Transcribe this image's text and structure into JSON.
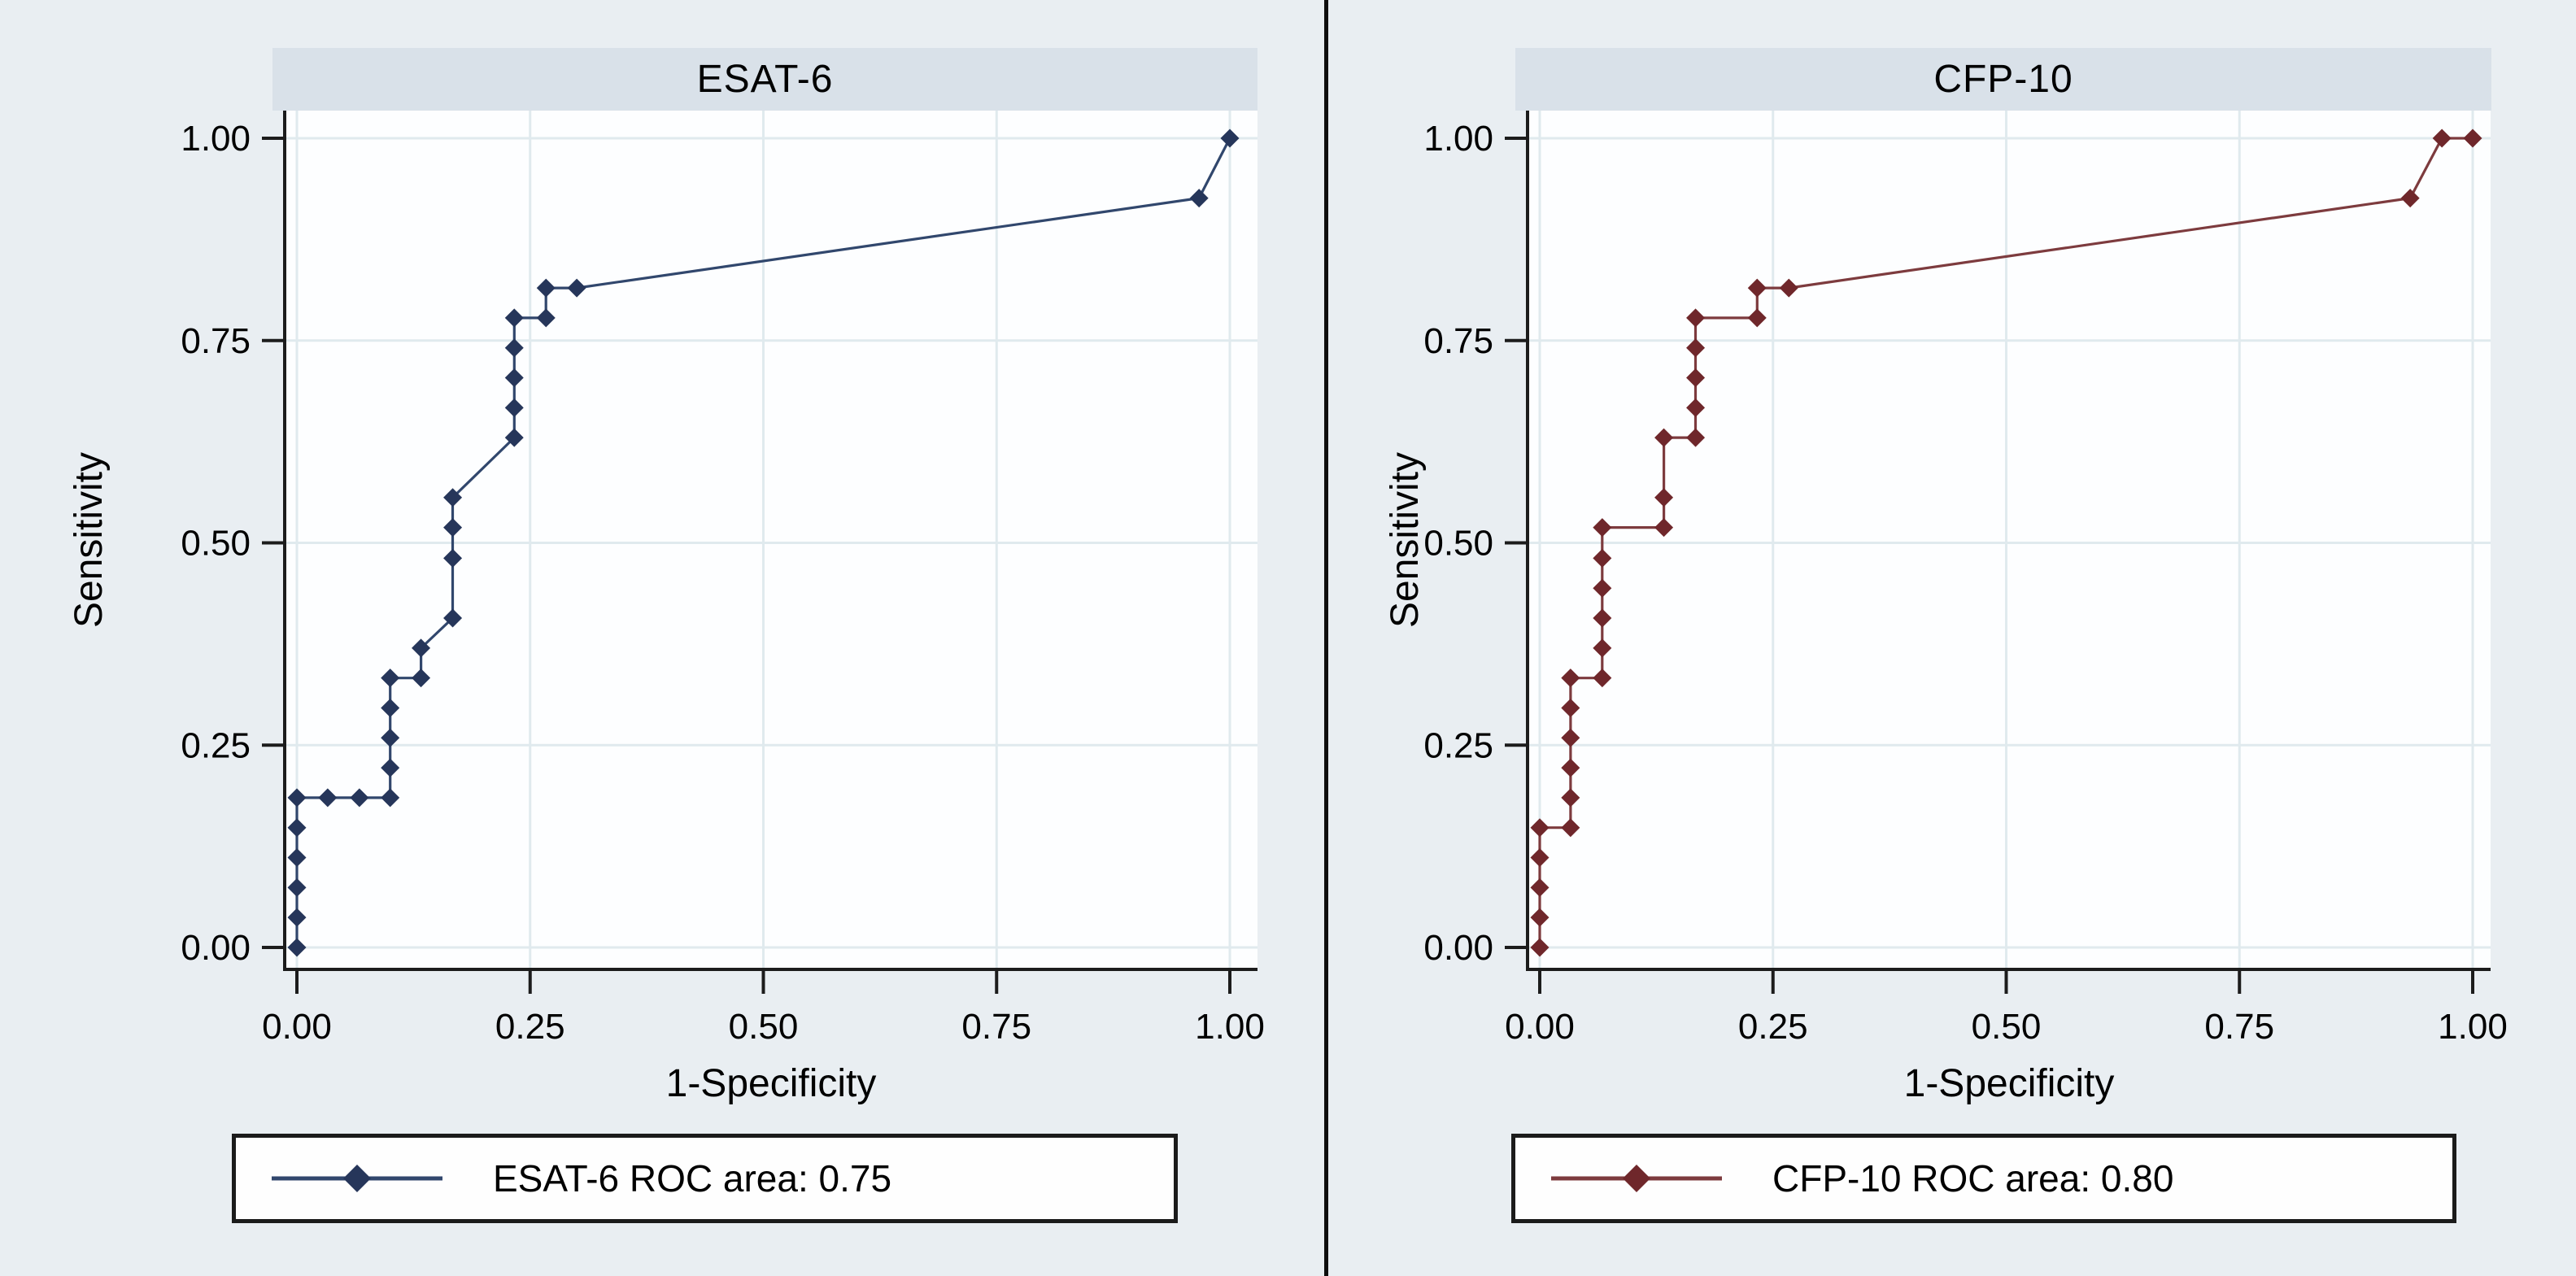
{
  "page": {
    "background": "#e9eef2",
    "divider_color": "#0e0e0e",
    "title_bar_color": "#d9e1e9",
    "plot_bg_color": "#fdfeff",
    "grid_color": "#e0eaee",
    "axis_color": "#1c1c1c"
  },
  "chart_data": [
    {
      "type": "line",
      "title": "ESAT-6",
      "xlabel": "1-Specificity",
      "ylabel": "Sensitivity",
      "xlim": [
        0,
        1
      ],
      "ylim": [
        0,
        1
      ],
      "grid": true,
      "x_tick_values": [
        0,
        0.25,
        0.5,
        0.75,
        1
      ],
      "x_tick_labels": [
        "0.00",
        "0.25",
        "0.50",
        "0.75",
        "1.00"
      ],
      "y_tick_values": [
        0,
        0.25,
        0.5,
        0.75,
        1
      ],
      "y_tick_labels": [
        "0.00",
        "0.25",
        "0.50",
        "0.75",
        "1.00"
      ],
      "series_name": "ESAT-6",
      "legend_label": "ESAT-6 ROC area: 0.75",
      "roc_area": 0.75,
      "line_color": "#31476d",
      "marker_color": "#26365a",
      "marker": "diamond",
      "points": [
        [
          0.0,
          0.0
        ],
        [
          0.0,
          0.037
        ],
        [
          0.0,
          0.074
        ],
        [
          0.0,
          0.111
        ],
        [
          0.0,
          0.148
        ],
        [
          0.0,
          0.185
        ],
        [
          0.033,
          0.185
        ],
        [
          0.067,
          0.185
        ],
        [
          0.1,
          0.185
        ],
        [
          0.1,
          0.222
        ],
        [
          0.1,
          0.259
        ],
        [
          0.1,
          0.296
        ],
        [
          0.1,
          0.333
        ],
        [
          0.133,
          0.333
        ],
        [
          0.133,
          0.37
        ],
        [
          0.167,
          0.407
        ],
        [
          0.167,
          0.481
        ],
        [
          0.167,
          0.519
        ],
        [
          0.167,
          0.556
        ],
        [
          0.233,
          0.63
        ],
        [
          0.233,
          0.667
        ],
        [
          0.233,
          0.704
        ],
        [
          0.233,
          0.741
        ],
        [
          0.233,
          0.778
        ],
        [
          0.267,
          0.778
        ],
        [
          0.267,
          0.815
        ],
        [
          0.3,
          0.815
        ],
        [
          0.967,
          0.926
        ],
        [
          1.0,
          1.0
        ]
      ]
    },
    {
      "type": "line",
      "title": "CFP-10",
      "xlabel": "1-Specificity",
      "ylabel": "Sensitivity",
      "xlim": [
        0,
        1
      ],
      "ylim": [
        0,
        1
      ],
      "grid": true,
      "x_tick_values": [
        0,
        0.25,
        0.5,
        0.75,
        1
      ],
      "x_tick_labels": [
        "0.00",
        "0.25",
        "0.50",
        "0.75",
        "1.00"
      ],
      "y_tick_values": [
        0,
        0.25,
        0.5,
        0.75,
        1
      ],
      "y_tick_labels": [
        "0.00",
        "0.25",
        "0.50",
        "0.75",
        "1.00"
      ],
      "series_name": "CFP-10",
      "legend_label": "CFP-10 ROC area: 0.80",
      "roc_area": 0.8,
      "line_color": "#7d3b3e",
      "marker_color": "#6f272b",
      "marker": "diamond",
      "points": [
        [
          0.0,
          0.0
        ],
        [
          0.0,
          0.037
        ],
        [
          0.0,
          0.074
        ],
        [
          0.0,
          0.111
        ],
        [
          0.0,
          0.148
        ],
        [
          0.033,
          0.148
        ],
        [
          0.033,
          0.185
        ],
        [
          0.033,
          0.222
        ],
        [
          0.033,
          0.259
        ],
        [
          0.033,
          0.296
        ],
        [
          0.033,
          0.333
        ],
        [
          0.067,
          0.333
        ],
        [
          0.067,
          0.37
        ],
        [
          0.067,
          0.407
        ],
        [
          0.067,
          0.444
        ],
        [
          0.067,
          0.481
        ],
        [
          0.067,
          0.519
        ],
        [
          0.133,
          0.519
        ],
        [
          0.133,
          0.556
        ],
        [
          0.133,
          0.63
        ],
        [
          0.167,
          0.63
        ],
        [
          0.167,
          0.667
        ],
        [
          0.167,
          0.704
        ],
        [
          0.167,
          0.741
        ],
        [
          0.167,
          0.778
        ],
        [
          0.233,
          0.778
        ],
        [
          0.233,
          0.815
        ],
        [
          0.267,
          0.815
        ],
        [
          0.933,
          0.926
        ],
        [
          0.967,
          1.0
        ],
        [
          1.0,
          1.0
        ]
      ]
    }
  ]
}
